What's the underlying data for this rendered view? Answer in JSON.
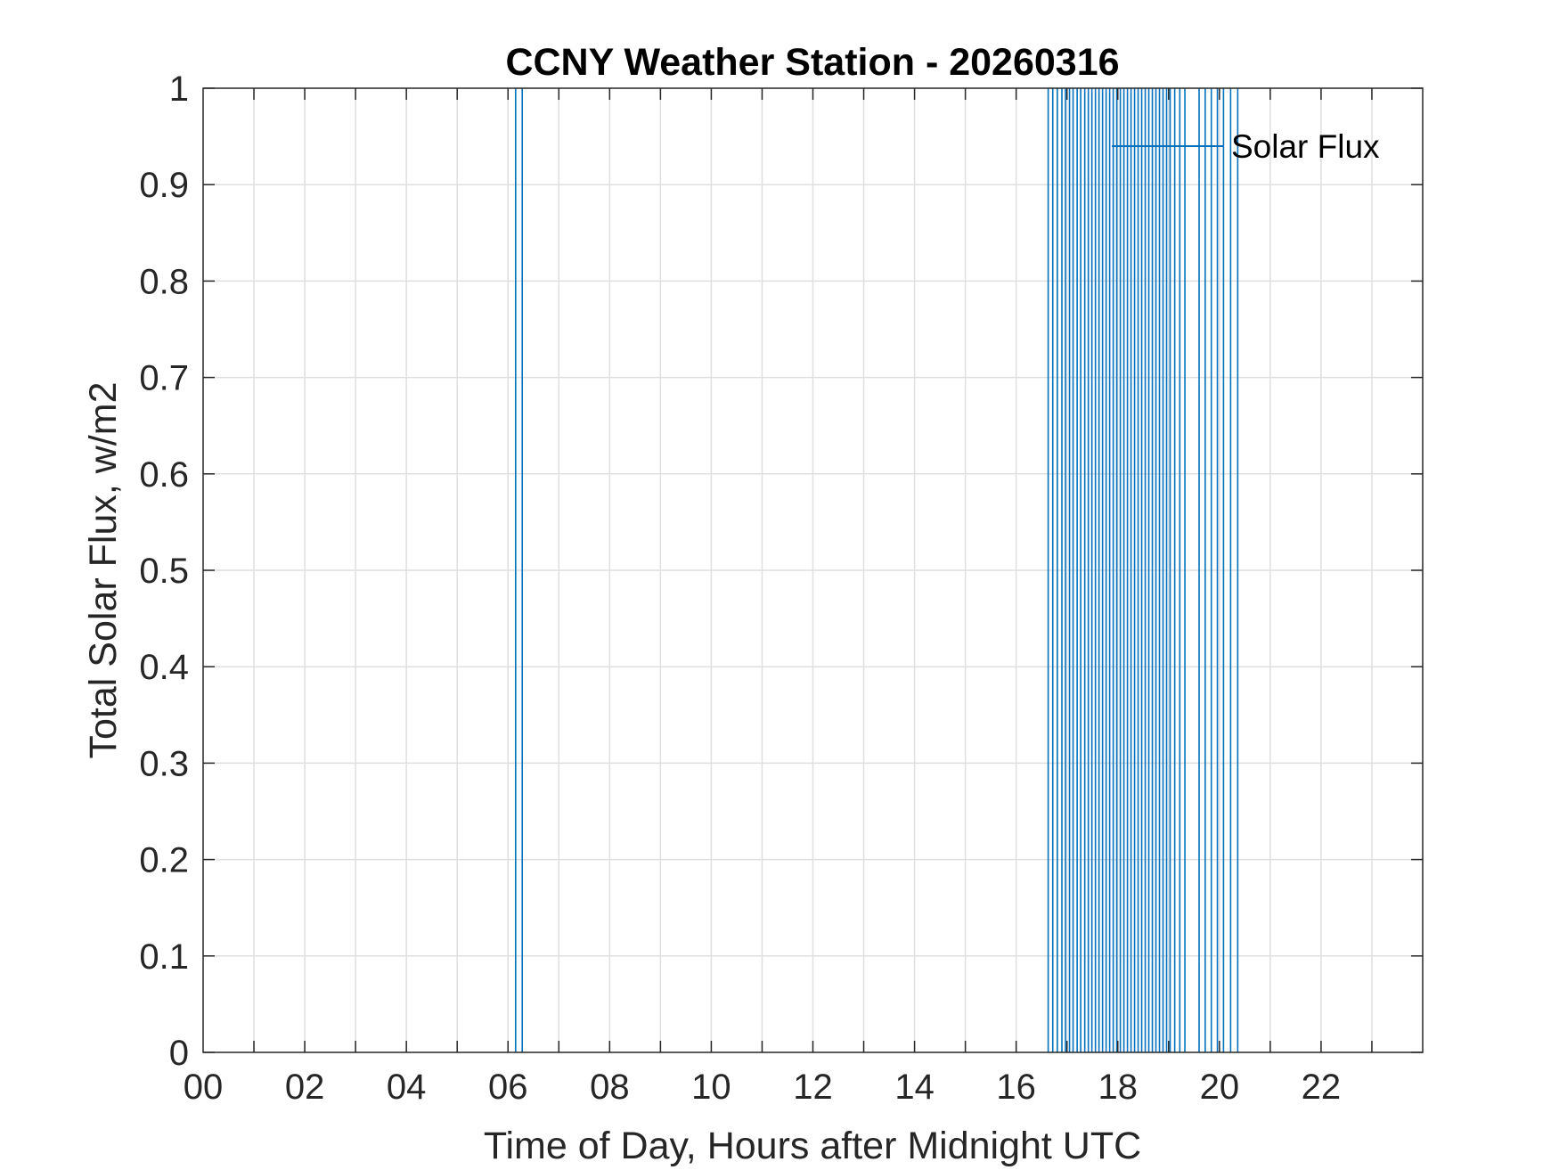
{
  "chart_data": {
    "type": "line",
    "title": "CCNY Weather Station - 20260316",
    "xlabel": "Time of Day, Hours after Midnight UTC",
    "ylabel": "Total Solar Flux, w/m2",
    "xlim": [
      0,
      24
    ],
    "ylim": [
      0,
      1
    ],
    "x_ticks": [
      0,
      2,
      4,
      6,
      8,
      10,
      12,
      14,
      16,
      18,
      20,
      22
    ],
    "x_tick_labels": [
      "00",
      "02",
      "04",
      "06",
      "08",
      "10",
      "12",
      "14",
      "16",
      "18",
      "20",
      "22"
    ],
    "y_ticks": [
      0,
      0.1,
      0.2,
      0.3,
      0.4,
      0.5,
      0.6,
      0.7,
      0.8,
      0.9,
      1
    ],
    "y_tick_labels": [
      "0",
      "0.1",
      "0.2",
      "0.3",
      "0.4",
      "0.5",
      "0.6",
      "0.7",
      "0.8",
      "0.9",
      "1"
    ],
    "grid": true,
    "legend": {
      "position": "top-right",
      "entries": [
        "Solar Flux"
      ]
    },
    "series": [
      {
        "name": "Solar Flux",
        "color": "#0072bd",
        "spike_x": [
          6.15,
          6.28,
          16.63,
          16.72,
          16.81,
          16.9,
          16.97,
          17.05,
          17.12,
          17.2,
          17.27,
          17.35,
          17.42,
          17.49,
          17.56,
          17.63,
          17.7,
          17.77,
          17.84,
          17.91,
          17.98,
          18.05,
          18.12,
          18.19,
          18.26,
          18.33,
          18.4,
          18.47,
          18.54,
          18.61,
          18.68,
          18.75,
          18.82,
          18.89,
          18.96,
          19.03,
          19.12,
          19.22,
          19.32,
          19.6,
          19.72,
          19.84,
          19.96,
          20.08,
          20.22,
          20.36
        ],
        "spike_y_low": 0,
        "spike_y_high": 1
      }
    ]
  }
}
